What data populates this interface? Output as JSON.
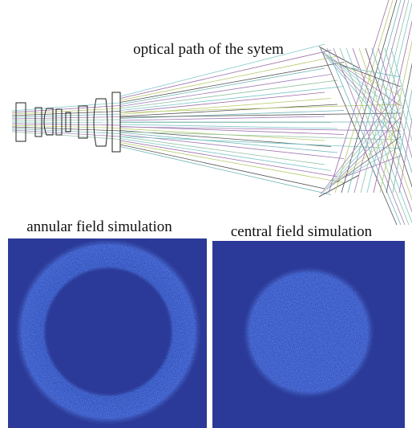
{
  "diagram": {
    "title": "optical path of the sytem",
    "panels": [
      {
        "label": "annular field simulation"
      },
      {
        "label": "central field simulation"
      }
    ]
  }
}
